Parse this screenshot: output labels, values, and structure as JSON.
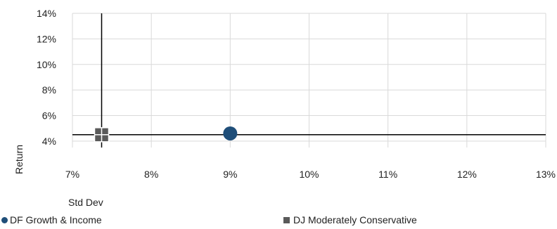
{
  "chart_data": {
    "type": "scatter",
    "xlabel": "Std Dev",
    "ylabel": "Return",
    "xlim": [
      7,
      13
    ],
    "ylim": [
      3.5,
      14
    ],
    "x_ticks": [
      {
        "value": 7,
        "label": "7%"
      },
      {
        "value": 8,
        "label": "8%"
      },
      {
        "value": 9,
        "label": "9%"
      },
      {
        "value": 10,
        "label": "10%"
      },
      {
        "value": 11,
        "label": "11%"
      },
      {
        "value": 12,
        "label": "12%"
      },
      {
        "value": 13,
        "label": "13%"
      }
    ],
    "y_ticks": [
      {
        "value": 4,
        "label": "4%"
      },
      {
        "value": 6,
        "label": "6%"
      },
      {
        "value": 8,
        "label": "8%"
      },
      {
        "value": 10,
        "label": "10%"
      },
      {
        "value": 12,
        "label": "12%"
      },
      {
        "value": 14,
        "label": "14%"
      }
    ],
    "grid": true,
    "legend_position": "bottom",
    "reference_lines": {
      "vertical_x": 7.37,
      "horizontal_y": 4.5
    },
    "series": [
      {
        "name": "DF Growth & Income",
        "marker": "circle",
        "color": "#1f4e79",
        "x": [
          9.0
        ],
        "y": [
          4.6
        ]
      },
      {
        "name": "DJ Moderately Conservative",
        "marker": "square",
        "color": "#5a5a5a",
        "x": [
          7.37
        ],
        "y": [
          4.5
        ]
      }
    ]
  }
}
